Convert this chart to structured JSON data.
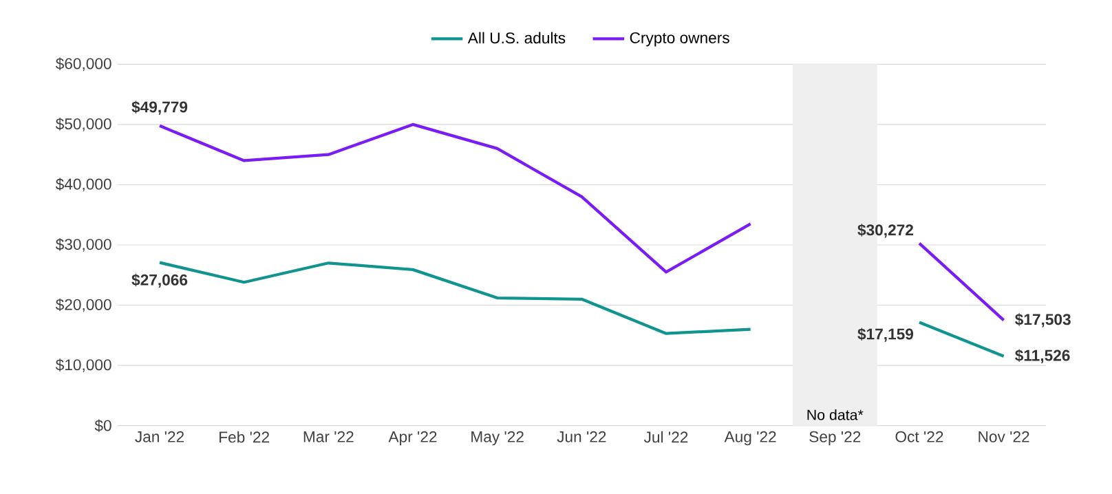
{
  "chart_data": {
    "type": "line",
    "categories": [
      "Jan '22",
      "Feb '22",
      "Mar '22",
      "Apr '22",
      "May '22",
      "Jun '22",
      "Jul '22",
      "Aug '22",
      "Sep '22",
      "Oct '22",
      "Nov '22"
    ],
    "series": [
      {
        "name": "All U.S. adults",
        "color": "#0f9490",
        "values": [
          27066,
          23800,
          27000,
          25900,
          21200,
          21000,
          15300,
          16000,
          null,
          17159,
          11526
        ],
        "value_labels": [
          "$27,066",
          null,
          null,
          null,
          null,
          null,
          null,
          null,
          null,
          "$17,159",
          "$11,526"
        ]
      },
      {
        "name": "Crypto owners",
        "color": "#7a1cf6",
        "values": [
          49779,
          44000,
          45000,
          50000,
          46000,
          38000,
          25500,
          33500,
          null,
          30272,
          17503
        ],
        "value_labels": [
          "$49,779",
          null,
          null,
          null,
          null,
          null,
          null,
          null,
          null,
          "$30,272",
          "$17,503"
        ]
      }
    ],
    "ylim": [
      0,
      60000
    ],
    "yticks": [
      {
        "value": 0,
        "label": "$0"
      },
      {
        "value": 10000,
        "label": "$10,000"
      },
      {
        "value": 20000,
        "label": "$20,000"
      },
      {
        "value": 30000,
        "label": "$30,000"
      },
      {
        "value": 40000,
        "label": "$40,000"
      },
      {
        "value": 50000,
        "label": "$50,000"
      },
      {
        "value": 60000,
        "label": "$60,000"
      }
    ],
    "bands": [
      {
        "axis": "x",
        "from": "Sep '22",
        "to": "Sep '22",
        "label": "No data*",
        "color": "#efefef"
      }
    ],
    "grid": "y",
    "legend": "top",
    "marker": "none",
    "line_style": "solid"
  }
}
